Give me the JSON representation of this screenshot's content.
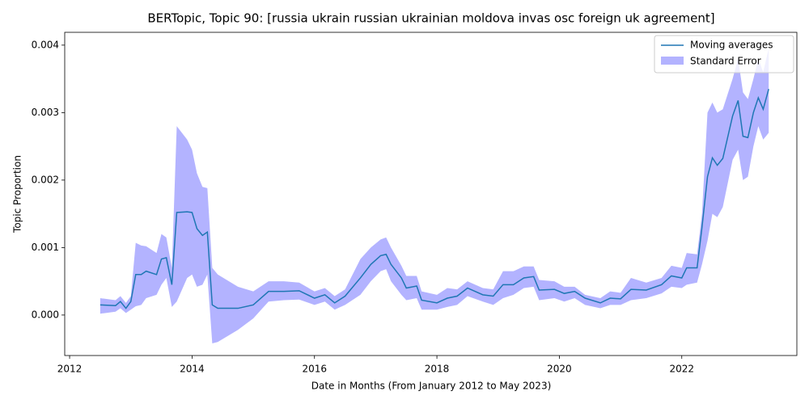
{
  "chart_data": {
    "type": "line",
    "title": "BERTopic, Topic 90: [russia ukrain russian ukrainian moldova invas osc foreign uk agreement]",
    "x_label": "Date in Months (From January 2012 to May 2023)",
    "y_label": "Topic Proportion",
    "x": [
      2012.5,
      2012.75,
      2012.83,
      2012.92,
      2013.0,
      2013.08,
      2013.17,
      2013.25,
      2013.42,
      2013.5,
      2013.58,
      2013.67,
      2013.75,
      2013.92,
      2014.0,
      2014.08,
      2014.17,
      2014.25,
      2014.33,
      2014.42,
      2014.75,
      2015.0,
      2015.25,
      2015.5,
      2015.75,
      2016.0,
      2016.17,
      2016.33,
      2016.5,
      2016.75,
      2016.92,
      2017.08,
      2017.17,
      2017.25,
      2017.42,
      2017.5,
      2017.67,
      2017.75,
      2018.0,
      2018.17,
      2018.33,
      2018.5,
      2018.75,
      2018.92,
      2019.08,
      2019.25,
      2019.42,
      2019.58,
      2019.67,
      2019.92,
      2020.08,
      2020.25,
      2020.42,
      2020.67,
      2020.83,
      2021.0,
      2021.17,
      2021.42,
      2021.67,
      2021.83,
      2022.0,
      2022.08,
      2022.25,
      2022.33,
      2022.42,
      2022.5,
      2022.58,
      2022.67,
      2022.83,
      2022.92,
      2023.0,
      2023.08,
      2023.17,
      2023.25,
      2023.33,
      2023.42
    ],
    "series": [
      {
        "name": "Moving averages",
        "color": "#1f77b4",
        "values": [
          0.00015,
          0.00014,
          0.0002,
          0.0001,
          0.0002,
          0.0006,
          0.0006,
          0.00065,
          0.0006,
          0.00083,
          0.00085,
          0.00045,
          0.00152,
          0.00153,
          0.00152,
          0.00128,
          0.00118,
          0.00123,
          0.00015,
          0.0001,
          0.0001,
          0.00015,
          0.00035,
          0.00035,
          0.00036,
          0.00025,
          0.0003,
          0.00018,
          0.00028,
          0.00055,
          0.00075,
          0.00088,
          0.0009,
          0.00075,
          0.00055,
          0.0004,
          0.00043,
          0.00022,
          0.00018,
          0.00025,
          0.00028,
          0.0004,
          0.0003,
          0.00028,
          0.00045,
          0.00045,
          0.00055,
          0.00057,
          0.00037,
          0.00038,
          0.00032,
          0.00035,
          0.00025,
          0.00018,
          0.00025,
          0.00024,
          0.00038,
          0.00037,
          0.00045,
          0.00058,
          0.00055,
          0.0007,
          0.0007,
          0.0013,
          0.00205,
          0.00233,
          0.00222,
          0.00232,
          0.00295,
          0.00318,
          0.00265,
          0.00263,
          0.003,
          0.00322,
          0.00305,
          0.00335
        ]
      },
      {
        "name": "Standard Error",
        "color": "#b3b3ff",
        "lower": [
          2e-05,
          5e-05,
          0.0001,
          3e-05,
          8e-05,
          0.00013,
          0.00015,
          0.00025,
          0.0003,
          0.00045,
          0.00055,
          0.00012,
          0.0002,
          0.00055,
          0.0006,
          0.00042,
          0.00045,
          0.0006,
          -0.00042,
          -0.0004,
          -0.00022,
          -5e-05,
          0.0002,
          0.00022,
          0.00023,
          0.00015,
          0.0002,
          8e-05,
          0.00015,
          0.0003,
          0.0005,
          0.00065,
          0.00068,
          0.0005,
          0.0003,
          0.00022,
          0.00025,
          8e-05,
          8e-05,
          0.00012,
          0.00015,
          0.00028,
          0.0002,
          0.00015,
          0.00025,
          0.0003,
          0.0004,
          0.00042,
          0.00022,
          0.00025,
          0.0002,
          0.00025,
          0.00015,
          0.0001,
          0.00015,
          0.00015,
          0.00022,
          0.00025,
          0.00032,
          0.00042,
          0.0004,
          0.00045,
          0.00048,
          0.00075,
          0.0011,
          0.0015,
          0.00145,
          0.0016,
          0.0023,
          0.00245,
          0.002,
          0.00205,
          0.0025,
          0.0028,
          0.0026,
          0.0027
        ],
        "upper": [
          0.00025,
          0.00022,
          0.00028,
          0.00018,
          0.00028,
          0.00107,
          0.00103,
          0.00102,
          0.00092,
          0.0012,
          0.00115,
          0.0007,
          0.0028,
          0.0026,
          0.00245,
          0.0021,
          0.0019,
          0.00188,
          0.0007,
          0.0006,
          0.00042,
          0.00035,
          0.0005,
          0.0005,
          0.00048,
          0.00035,
          0.0004,
          0.00028,
          0.00038,
          0.00083,
          0.001,
          0.00112,
          0.00115,
          0.001,
          0.00073,
          0.00058,
          0.00058,
          0.00035,
          0.0003,
          0.0004,
          0.00038,
          0.0005,
          0.0004,
          0.00038,
          0.00065,
          0.00065,
          0.00072,
          0.00072,
          0.00052,
          0.0005,
          0.00042,
          0.00042,
          0.0003,
          0.00025,
          0.00035,
          0.00033,
          0.00055,
          0.00048,
          0.00055,
          0.00073,
          0.0007,
          0.00092,
          0.0009,
          0.0015,
          0.003,
          0.00315,
          0.003,
          0.00305,
          0.0035,
          0.0038,
          0.0033,
          0.0032,
          0.0035,
          0.0038,
          0.0036,
          0.00395
        ]
      }
    ],
    "xlim": [
      2011.92,
      2023.88
    ],
    "ylim": [
      -0.0006,
      0.00419
    ],
    "xticks": [
      2012,
      2014,
      2016,
      2018,
      2020,
      2022
    ],
    "yticks": [
      {
        "value": 0,
        "label": "0.000"
      },
      {
        "value": 0.001,
        "label": "0.001"
      },
      {
        "value": 0.002,
        "label": "0.002"
      },
      {
        "value": 0.003,
        "label": "0.003"
      },
      {
        "value": 0.004,
        "label": "0.004"
      }
    ],
    "legend": "upper right"
  }
}
